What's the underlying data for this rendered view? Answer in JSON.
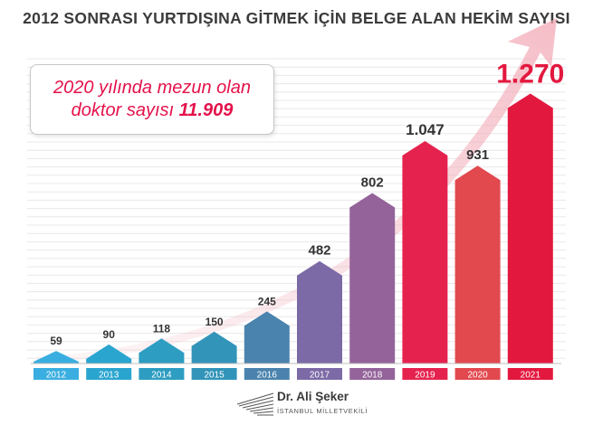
{
  "title": "2012 SONRASI YURTDIŞINA GİTMEK İÇİN BELGE ALAN HEKİM SAYISI",
  "callout": {
    "line1": "2020 yılında mezun olan",
    "line2_text": "doktor sayısı",
    "line2_value": "11.909"
  },
  "signature": {
    "name": "Dr. Ali Şeker",
    "subtitle": "İSTANBUL MİLLETVEKİLİ"
  },
  "chart_data": {
    "type": "bar",
    "title": "2012 SONRASI YURTDIŞINA GİTMEK İÇİN BELGE ALAN HEKİM SAYISI",
    "xlabel": "",
    "ylabel": "",
    "ylim": [
      0,
      1400
    ],
    "grid": true,
    "categories": [
      "2012",
      "2013",
      "2014",
      "2015",
      "2016",
      "2017",
      "2018",
      "2019",
      "2020",
      "2021"
    ],
    "values": [
      59,
      90,
      118,
      150,
      245,
      482,
      802,
      1047,
      931,
      1270
    ],
    "value_labels": [
      "59",
      "90",
      "118",
      "150",
      "245",
      "482",
      "802",
      "1.047",
      "931",
      "1.270"
    ],
    "colors": [
      "#3aaee0",
      "#2aa5cf",
      "#2d9dc1",
      "#3294b9",
      "#4a83ad",
      "#7b6aa6",
      "#94639a",
      "#e5224e",
      "#e2494f",
      "#e3183f"
    ]
  }
}
